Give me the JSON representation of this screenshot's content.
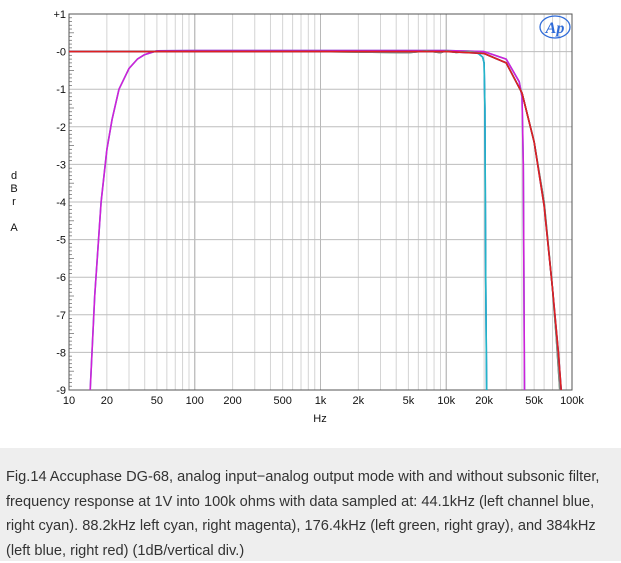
{
  "chart_data": {
    "type": "line",
    "title": "",
    "xlabel": "Hz",
    "ylabel_letters": [
      "d",
      "B",
      "r",
      "",
      "A"
    ],
    "x_scale": "log",
    "xlim": [
      10,
      100000
    ],
    "ylim": [
      -9,
      1
    ],
    "x_ticks": [
      {
        "value": 10,
        "label": "10"
      },
      {
        "value": 20,
        "label": "20"
      },
      {
        "value": 50,
        "label": "50"
      },
      {
        "value": 100,
        "label": "100"
      },
      {
        "value": 200,
        "label": "200"
      },
      {
        "value": 500,
        "label": "500"
      },
      {
        "value": 1000,
        "label": "1k"
      },
      {
        "value": 2000,
        "label": "2k"
      },
      {
        "value": 5000,
        "label": "5k"
      },
      {
        "value": 10000,
        "label": "10k"
      },
      {
        "value": 20000,
        "label": "20k"
      },
      {
        "value": 50000,
        "label": "50k"
      },
      {
        "value": 100000,
        "label": "100k"
      }
    ],
    "y_ticks": [
      {
        "value": 1,
        "label": "+1"
      },
      {
        "value": 0,
        "label": "-0"
      },
      {
        "value": -1,
        "label": "-1"
      },
      {
        "value": -2,
        "label": "-2"
      },
      {
        "value": -3,
        "label": "-3"
      },
      {
        "value": -4,
        "label": "-4"
      },
      {
        "value": -5,
        "label": "-5"
      },
      {
        "value": -6,
        "label": "-6"
      },
      {
        "value": -7,
        "label": "-7"
      },
      {
        "value": -8,
        "label": "-8"
      },
      {
        "value": -9,
        "label": "-9"
      }
    ],
    "grid": true,
    "logo_text": "Ap",
    "series": [
      {
        "name": "44.1kHz left",
        "color": "#1f3fbf",
        "x": [
          10,
          20,
          50,
          100,
          1000,
          5000,
          10000,
          15000,
          18000,
          19500,
          20000,
          20300,
          20600,
          21000
        ],
        "y": [
          0.0,
          0.0,
          0.0,
          0.0,
          0.0,
          0.0,
          0.0,
          0.0,
          -0.05,
          -0.15,
          -0.3,
          -1.5,
          -6.0,
          -9.5
        ]
      },
      {
        "name": "44.1kHz right",
        "color": "#22b5c8",
        "x": [
          10,
          20,
          50,
          100,
          1000,
          5000,
          10000,
          15000,
          18000,
          19500,
          20000,
          20300,
          20600,
          21000
        ],
        "y": [
          0.0,
          0.0,
          0.0,
          0.0,
          0.0,
          0.0,
          0.0,
          0.0,
          -0.05,
          -0.15,
          -0.3,
          -1.5,
          -6.0,
          -9.5
        ]
      },
      {
        "name": "88.2kHz left",
        "color": "#2fbcd0",
        "x": [
          14.5,
          16,
          18,
          20,
          22,
          25,
          30,
          35,
          40,
          50,
          100,
          1000,
          10000,
          20000,
          30000,
          38000,
          40000,
          41000,
          41500,
          42000
        ],
        "y": [
          -9.5,
          -6.5,
          -4.0,
          -2.6,
          -1.8,
          -1.0,
          -0.45,
          -0.2,
          -0.08,
          0.02,
          0.03,
          0.03,
          0.03,
          0.0,
          -0.2,
          -0.8,
          -1.2,
          -3.0,
          -6.5,
          -9.5
        ]
      },
      {
        "name": "88.2kHz right",
        "color": "#d020d8",
        "x": [
          14.5,
          16,
          18,
          20,
          22,
          25,
          30,
          35,
          40,
          50,
          100,
          1000,
          10000,
          20000,
          30000,
          38000,
          40000,
          41000,
          41500,
          42000
        ],
        "y": [
          -9.5,
          -6.5,
          -4.0,
          -2.6,
          -1.8,
          -1.0,
          -0.45,
          -0.2,
          -0.08,
          0.02,
          0.03,
          0.03,
          0.03,
          0.0,
          -0.2,
          -0.8,
          -1.2,
          -3.0,
          -6.5,
          -9.5
        ]
      },
      {
        "name": "176.4kHz left",
        "color": "#22a040",
        "x": [
          10,
          50,
          100,
          500,
          1000,
          5000,
          7000,
          9000,
          10000,
          12000,
          15000,
          20000,
          30000,
          40000,
          50000,
          60000,
          70000,
          75000,
          80000,
          85000
        ],
        "y": [
          0.0,
          0.0,
          0.0,
          0.0,
          0.0,
          -0.03,
          0.02,
          -0.03,
          0.02,
          -0.02,
          0.0,
          -0.05,
          -0.3,
          -1.1,
          -2.4,
          -4.0,
          -6.3,
          -7.6,
          -9.0,
          -10.2
        ]
      },
      {
        "name": "176.4kHz right",
        "color": "#888888",
        "x": [
          10,
          50,
          100,
          500,
          1000,
          5000,
          7000,
          9000,
          10000,
          12000,
          15000,
          20000,
          30000,
          40000,
          50000,
          60000,
          70000,
          75000,
          80000,
          85000
        ],
        "y": [
          0.0,
          0.0,
          0.0,
          0.0,
          0.0,
          -0.03,
          0.02,
          -0.03,
          0.02,
          -0.02,
          0.0,
          -0.05,
          -0.3,
          -1.1,
          -2.4,
          -4.0,
          -6.3,
          -7.6,
          -9.0,
          -10.2
        ]
      },
      {
        "name": "384kHz left",
        "color": "#1b2fb0",
        "x": [
          10,
          50,
          100,
          1000,
          10000,
          20000,
          30000,
          40000,
          50000,
          60000,
          70000,
          78000,
          82000,
          86000
        ],
        "y": [
          0.0,
          0.0,
          0.0,
          0.0,
          0.0,
          -0.05,
          -0.3,
          -1.1,
          -2.4,
          -4.1,
          -6.3,
          -8.0,
          -9.0,
          -10.0
        ]
      },
      {
        "name": "384kHz right",
        "color": "#e02020",
        "x": [
          10,
          50,
          100,
          1000,
          10000,
          20000,
          30000,
          40000,
          50000,
          60000,
          70000,
          78000,
          82000,
          86000
        ],
        "y": [
          0.0,
          0.0,
          0.0,
          0.0,
          0.0,
          -0.05,
          -0.3,
          -1.1,
          -2.4,
          -4.1,
          -6.3,
          -8.0,
          -9.0,
          -10.0
        ]
      }
    ]
  },
  "caption": {
    "text": "Fig.14 Accuphase DG-68, analog input−analog output mode with and without subsonic filter, frequency response at 1V into 100k ohms with data sampled at: 44.1kHz (left channel blue, right cyan). 88.2kHz left cyan, right magenta), 176.4kHz (left green, right gray), and 384kHz (left blue, right red) (1dB/vertical div.)"
  }
}
